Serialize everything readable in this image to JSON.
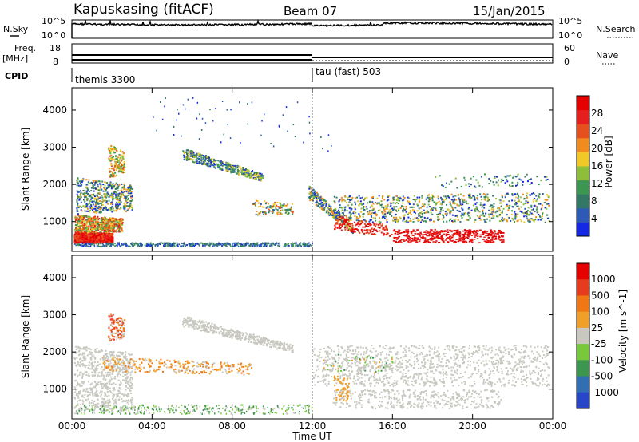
{
  "header": {
    "station": "Kapuskasing (fitACF)",
    "beam": "Beam 07",
    "date": "15/Jan/2015"
  },
  "strip_panels": {
    "nsky": {
      "label": "N.Sky",
      "top_tick": "10^5",
      "bottom_tick": "10^0",
      "right_label": "N.Search",
      "right_top_tick": "10^5",
      "right_bottom_tick": "10^0"
    },
    "freq": {
      "label_line1": "Freq.",
      "label_line2": "[MHz]",
      "top_tick": "18",
      "bottom_tick": "8",
      "right_label": "Nave",
      "right_top_tick": "60",
      "right_bottom_tick": "0"
    },
    "cpid": {
      "label": "CPID",
      "modes": [
        {
          "name": "themis 3300",
          "start": "00:00"
        },
        {
          "name": "tau (fast) 503",
          "start": "12:00"
        }
      ]
    }
  },
  "chart_data": [
    {
      "type": "heatmap",
      "title": "",
      "xlabel": "Time UT",
      "ylabel": "Slant Range [km]",
      "x_ticks": [
        "00:00",
        "04:00",
        "08:00",
        "12:00",
        "16:00",
        "20:00",
        "00:00"
      ],
      "x_range_hours": [
        0,
        24
      ],
      "y_ticks": [
        1000,
        2000,
        3000,
        4000
      ],
      "ylim": [
        200,
        4600
      ],
      "colorbar": {
        "label": "Power [dB]",
        "ticks": [
          4,
          8,
          12,
          16,
          20,
          24,
          28
        ],
        "range": [
          0,
          32
        ],
        "colors": [
          "#1428e6",
          "#2d5ab4",
          "#327864",
          "#3c9650",
          "#8cbe3c",
          "#f0c828",
          "#f08c1e",
          "#e6501e",
          "#e61e1e",
          "#e60000"
        ]
      }
    },
    {
      "type": "heatmap",
      "title": "",
      "xlabel": "Time UT",
      "ylabel": "Slant Range [km]",
      "x_ticks": [
        "00:00",
        "04:00",
        "08:00",
        "12:00",
        "16:00",
        "20:00",
        "00:00"
      ],
      "x_range_hours": [
        0,
        24
      ],
      "y_ticks": [
        1000,
        2000,
        3000,
        4000
      ],
      "ylim": [
        200,
        4600
      ],
      "colorbar": {
        "label": "Velocity [m s^-1]",
        "ticks": [
          "1000",
          "500",
          "100",
          "25",
          "-25",
          "-100",
          "-500",
          "-1000"
        ],
        "colors": [
          "#2846c8",
          "#326eb4",
          "#3c9650",
          "#78c83c",
          "#c8c8c0",
          "#f0a028",
          "#f07814",
          "#e63c1e",
          "#e60000"
        ]
      }
    }
  ]
}
